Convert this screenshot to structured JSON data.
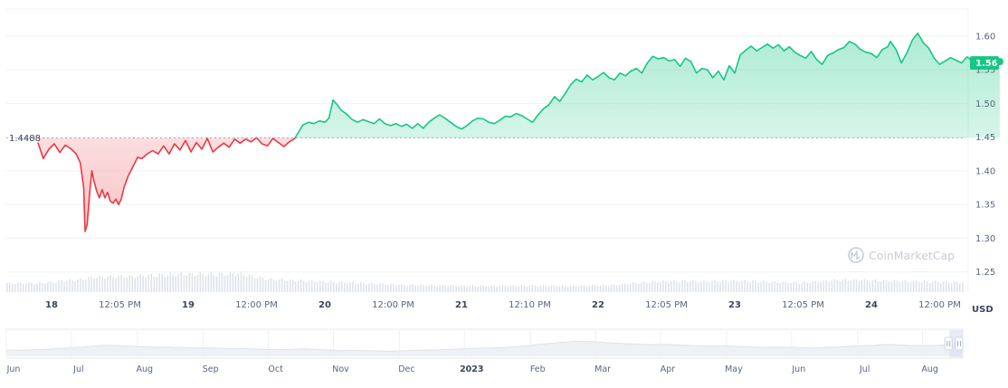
{
  "chart_data": {
    "type": "line",
    "currency": "USD",
    "reference_price": 1.4488,
    "reference_label": "1.4488",
    "current_label": "1.56",
    "ylim": [
      1.22,
      1.64
    ],
    "y_ticks": [
      "1.60",
      "1.55",
      "1.50",
      "1.45",
      "1.40",
      "1.35",
      "1.30",
      "1.25"
    ],
    "x_range": [
      0,
      7.2
    ],
    "x_ticks": [
      {
        "x": 0.0,
        "label": "18",
        "bold": true
      },
      {
        "x": 0.5,
        "label": "12:05 PM",
        "bold": false
      },
      {
        "x": 1.0,
        "label": "19",
        "bold": true
      },
      {
        "x": 1.5,
        "label": "12:00 PM",
        "bold": false
      },
      {
        "x": 2.0,
        "label": "20",
        "bold": true
      },
      {
        "x": 2.5,
        "label": "12:00 PM",
        "bold": false
      },
      {
        "x": 3.0,
        "label": "21",
        "bold": true
      },
      {
        "x": 3.5,
        "label": "12:10 PM",
        "bold": false
      },
      {
        "x": 4.0,
        "label": "22",
        "bold": true
      },
      {
        "x": 4.5,
        "label": "12:05 PM",
        "bold": false
      },
      {
        "x": 5.0,
        "label": "23",
        "bold": true
      },
      {
        "x": 5.5,
        "label": "12:05 PM",
        "bold": false
      },
      {
        "x": 6.0,
        "label": "24",
        "bold": true
      },
      {
        "x": 6.5,
        "label": "12:00 PM",
        "bold": false
      }
    ],
    "series": [
      {
        "points": [
          [
            -0.1,
            1.442
          ],
          [
            -0.06,
            1.418
          ],
          [
            -0.02,
            1.432
          ],
          [
            0.02,
            1.44
          ],
          [
            0.06,
            1.427
          ],
          [
            0.1,
            1.438
          ],
          [
            0.14,
            1.433
          ],
          [
            0.18,
            1.425
          ],
          [
            0.21,
            1.412
          ],
          [
            0.235,
            1.375
          ],
          [
            0.245,
            1.31
          ],
          [
            0.26,
            1.32
          ],
          [
            0.28,
            1.37
          ],
          [
            0.295,
            1.4
          ],
          [
            0.31,
            1.385
          ],
          [
            0.33,
            1.37
          ],
          [
            0.35,
            1.36
          ],
          [
            0.37,
            1.372
          ],
          [
            0.39,
            1.36
          ],
          [
            0.41,
            1.368
          ],
          [
            0.43,
            1.355
          ],
          [
            0.45,
            1.352
          ],
          [
            0.47,
            1.358
          ],
          [
            0.49,
            1.35
          ],
          [
            0.51,
            1.358
          ],
          [
            0.53,
            1.375
          ],
          [
            0.56,
            1.392
          ],
          [
            0.6,
            1.408
          ],
          [
            0.63,
            1.42
          ],
          [
            0.66,
            1.418
          ],
          [
            0.7,
            1.425
          ],
          [
            0.74,
            1.43
          ],
          [
            0.78,
            1.425
          ],
          [
            0.82,
            1.437
          ],
          [
            0.86,
            1.425
          ],
          [
            0.9,
            1.44
          ],
          [
            0.94,
            1.431
          ],
          [
            0.98,
            1.445
          ],
          [
            1.02,
            1.428
          ],
          [
            1.06,
            1.442
          ],
          [
            1.1,
            1.432
          ],
          [
            1.14,
            1.448
          ],
          [
            1.18,
            1.428
          ],
          [
            1.22,
            1.435
          ],
          [
            1.26,
            1.441
          ],
          [
            1.3,
            1.435
          ],
          [
            1.34,
            1.447
          ],
          [
            1.38,
            1.441
          ],
          [
            1.42,
            1.447
          ],
          [
            1.46,
            1.443
          ],
          [
            1.5,
            1.449
          ],
          [
            1.54,
            1.44
          ],
          [
            1.58,
            1.437
          ],
          [
            1.62,
            1.448
          ],
          [
            1.66,
            1.442
          ],
          [
            1.7,
            1.436
          ],
          [
            1.74,
            1.443
          ],
          [
            1.78,
            1.448
          ],
          [
            1.8,
            1.455
          ],
          [
            1.84,
            1.468
          ],
          [
            1.88,
            1.472
          ],
          [
            1.92,
            1.47
          ],
          [
            1.96,
            1.474
          ],
          [
            2.0,
            1.472
          ],
          [
            2.03,
            1.478
          ],
          [
            2.06,
            1.505
          ],
          [
            2.09,
            1.498
          ],
          [
            2.12,
            1.49
          ],
          [
            2.16,
            1.484
          ],
          [
            2.2,
            1.476
          ],
          [
            2.24,
            1.472
          ],
          [
            2.28,
            1.476
          ],
          [
            2.32,
            1.473
          ],
          [
            2.36,
            1.47
          ],
          [
            2.4,
            1.477
          ],
          [
            2.44,
            1.47
          ],
          [
            2.48,
            1.467
          ],
          [
            2.52,
            1.47
          ],
          [
            2.56,
            1.466
          ],
          [
            2.6,
            1.469
          ],
          [
            2.64,
            1.463
          ],
          [
            2.68,
            1.47
          ],
          [
            2.72,
            1.463
          ],
          [
            2.76,
            1.472
          ],
          [
            2.8,
            1.478
          ],
          [
            2.84,
            1.483
          ],
          [
            2.88,
            1.478
          ],
          [
            2.92,
            1.472
          ],
          [
            2.96,
            1.466
          ],
          [
            3.0,
            1.462
          ],
          [
            3.04,
            1.467
          ],
          [
            3.08,
            1.474
          ],
          [
            3.12,
            1.478
          ],
          [
            3.16,
            1.477
          ],
          [
            3.2,
            1.472
          ],
          [
            3.24,
            1.47
          ],
          [
            3.28,
            1.475
          ],
          [
            3.32,
            1.481
          ],
          [
            3.36,
            1.48
          ],
          [
            3.4,
            1.485
          ],
          [
            3.44,
            1.482
          ],
          [
            3.48,
            1.477
          ],
          [
            3.52,
            1.472
          ],
          [
            3.56,
            1.483
          ],
          [
            3.6,
            1.492
          ],
          [
            3.64,
            1.498
          ],
          [
            3.68,
            1.51
          ],
          [
            3.72,
            1.503
          ],
          [
            3.76,
            1.515
          ],
          [
            3.8,
            1.528
          ],
          [
            3.84,
            1.536
          ],
          [
            3.88,
            1.532
          ],
          [
            3.92,
            1.542
          ],
          [
            3.96,
            1.535
          ],
          [
            4.0,
            1.54
          ],
          [
            4.04,
            1.546
          ],
          [
            4.08,
            1.538
          ],
          [
            4.12,
            1.535
          ],
          [
            4.16,
            1.545
          ],
          [
            4.2,
            1.541
          ],
          [
            4.24,
            1.548
          ],
          [
            4.28,
            1.552
          ],
          [
            4.32,
            1.545
          ],
          [
            4.36,
            1.56
          ],
          [
            4.4,
            1.57
          ],
          [
            4.44,
            1.566
          ],
          [
            4.48,
            1.568
          ],
          [
            4.52,
            1.563
          ],
          [
            4.56,
            1.565
          ],
          [
            4.6,
            1.555
          ],
          [
            4.64,
            1.567
          ],
          [
            4.68,
            1.562
          ],
          [
            4.72,
            1.545
          ],
          [
            4.76,
            1.552
          ],
          [
            4.8,
            1.55
          ],
          [
            4.84,
            1.538
          ],
          [
            4.88,
            1.548
          ],
          [
            4.92,
            1.535
          ],
          [
            4.96,
            1.556
          ],
          [
            5.0,
            1.545
          ],
          [
            5.04,
            1.572
          ],
          [
            5.08,
            1.579
          ],
          [
            5.12,
            1.585
          ],
          [
            5.16,
            1.578
          ],
          [
            5.2,
            1.583
          ],
          [
            5.24,
            1.588
          ],
          [
            5.28,
            1.582
          ],
          [
            5.32,
            1.587
          ],
          [
            5.36,
            1.578
          ],
          [
            5.4,
            1.584
          ],
          [
            5.44,
            1.576
          ],
          [
            5.48,
            1.571
          ],
          [
            5.52,
            1.567
          ],
          [
            5.56,
            1.577
          ],
          [
            5.6,
            1.565
          ],
          [
            5.64,
            1.558
          ],
          [
            5.68,
            1.571
          ],
          [
            5.72,
            1.575
          ],
          [
            5.76,
            1.58
          ],
          [
            5.8,
            1.583
          ],
          [
            5.84,
            1.592
          ],
          [
            5.88,
            1.588
          ],
          [
            5.92,
            1.58
          ],
          [
            5.96,
            1.576
          ],
          [
            6.0,
            1.574
          ],
          [
            6.04,
            1.568
          ],
          [
            6.08,
            1.58
          ],
          [
            6.12,
            1.584
          ],
          [
            6.14,
            1.592
          ],
          [
            6.18,
            1.58
          ],
          [
            6.22,
            1.56
          ],
          [
            6.26,
            1.575
          ],
          [
            6.3,
            1.594
          ],
          [
            6.34,
            1.604
          ],
          [
            6.38,
            1.59
          ],
          [
            6.42,
            1.582
          ],
          [
            6.46,
            1.567
          ],
          [
            6.5,
            1.558
          ],
          [
            6.54,
            1.563
          ],
          [
            6.58,
            1.568
          ],
          [
            6.62,
            1.564
          ],
          [
            6.66,
            1.56
          ],
          [
            6.7,
            1.569
          ],
          [
            6.74,
            1.563
          ],
          [
            6.78,
            1.566
          ],
          [
            6.82,
            1.562
          ],
          [
            6.86,
            1.56
          ],
          [
            6.9,
            1.566
          ],
          [
            6.94,
            1.562
          ]
        ]
      }
    ],
    "volume": [
      0.2,
      0.2,
      0.2,
      0.2,
      0.22,
      0.25,
      0.27,
      0.28,
      0.34,
      0.34,
      0.35,
      0.35,
      0.36,
      0.37,
      0.38,
      0.39,
      0.4,
      0.4,
      0.4,
      0.39,
      0.4,
      0.41,
      0.41,
      0.34,
      0.3,
      0.28,
      0.27,
      0.26,
      0.25,
      0.24,
      0.23,
      0.22,
      0.21,
      0.2,
      0.19,
      0.18,
      0.17,
      0.16,
      0.16,
      0.15,
      0.15,
      0.15,
      0.14,
      0.14,
      0.14,
      0.14,
      0.14,
      0.14,
      0.14,
      0.14,
      0.14,
      0.14,
      0.14,
      0.14,
      0.14,
      0.15,
      0.15,
      0.17,
      0.19,
      0.21,
      0.23,
      0.24,
      0.24,
      0.24,
      0.24,
      0.24,
      0.25,
      0.25,
      0.25,
      0.24,
      0.24,
      0.23,
      0.22,
      0.21,
      0.21,
      0.23,
      0.24,
      0.26,
      0.27,
      0.27,
      0.26,
      0.26,
      0.25,
      0.25,
      0.24,
      0.24,
      0.23,
      0.23,
      0.22,
      0.22
    ]
  },
  "navigator": {
    "labels": [
      {
        "x": 0.0,
        "label": "Jun",
        "bold": false
      },
      {
        "x": 0.068,
        "label": "Jul",
        "bold": false
      },
      {
        "x": 0.137,
        "label": "Aug",
        "bold": false
      },
      {
        "x": 0.206,
        "label": "Sep",
        "bold": false
      },
      {
        "x": 0.274,
        "label": "Oct",
        "bold": false
      },
      {
        "x": 0.342,
        "label": "Nov",
        "bold": false
      },
      {
        "x": 0.411,
        "label": "Dec",
        "bold": false
      },
      {
        "x": 0.479,
        "label": "2023",
        "bold": true
      },
      {
        "x": 0.548,
        "label": "Feb",
        "bold": false
      },
      {
        "x": 0.616,
        "label": "Mar",
        "bold": false
      },
      {
        "x": 0.684,
        "label": "Apr",
        "bold": false
      },
      {
        "x": 0.753,
        "label": "May",
        "bold": false
      },
      {
        "x": 0.821,
        "label": "Jun",
        "bold": false
      },
      {
        "x": 0.89,
        "label": "Jul",
        "bold": false
      },
      {
        "x": 0.958,
        "label": "Aug",
        "bold": false
      }
    ],
    "series": [
      0.25,
      0.24,
      0.26,
      0.27,
      0.3,
      0.33,
      0.36,
      0.4,
      0.44,
      0.42,
      0.4,
      0.38,
      0.36,
      0.37,
      0.35,
      0.33,
      0.34,
      0.32,
      0.3,
      0.31,
      0.29,
      0.27,
      0.26,
      0.28,
      0.3,
      0.27,
      0.25,
      0.23,
      0.24,
      0.22,
      0.21,
      0.2,
      0.22,
      0.24,
      0.25,
      0.26,
      0.28,
      0.3,
      0.32,
      0.33,
      0.35,
      0.38,
      0.42,
      0.48,
      0.52,
      0.56,
      0.6,
      0.58,
      0.55,
      0.52,
      0.5,
      0.48,
      0.46,
      0.47,
      0.45,
      0.43,
      0.42,
      0.4,
      0.41,
      0.39,
      0.37,
      0.36,
      0.35,
      0.36,
      0.34,
      0.33,
      0.35,
      0.37,
      0.4,
      0.42,
      0.44,
      0.47,
      0.45,
      0.43,
      0.42,
      0.44,
      0.46,
      0.48
    ],
    "selected_range": [
      0.986,
      1.0
    ]
  },
  "watermark": "CoinMarketCap",
  "colors": {
    "up": "#16c784",
    "down": "#ea3943",
    "up_fill": "#16c784",
    "down_fill": "#ea3943",
    "grid": "#eff2f5",
    "ref_line": "#a6b0c3",
    "volume": "#dde2ea",
    "nav_line": "#dfe3ea",
    "nav_border": "#cfd6e4"
  }
}
